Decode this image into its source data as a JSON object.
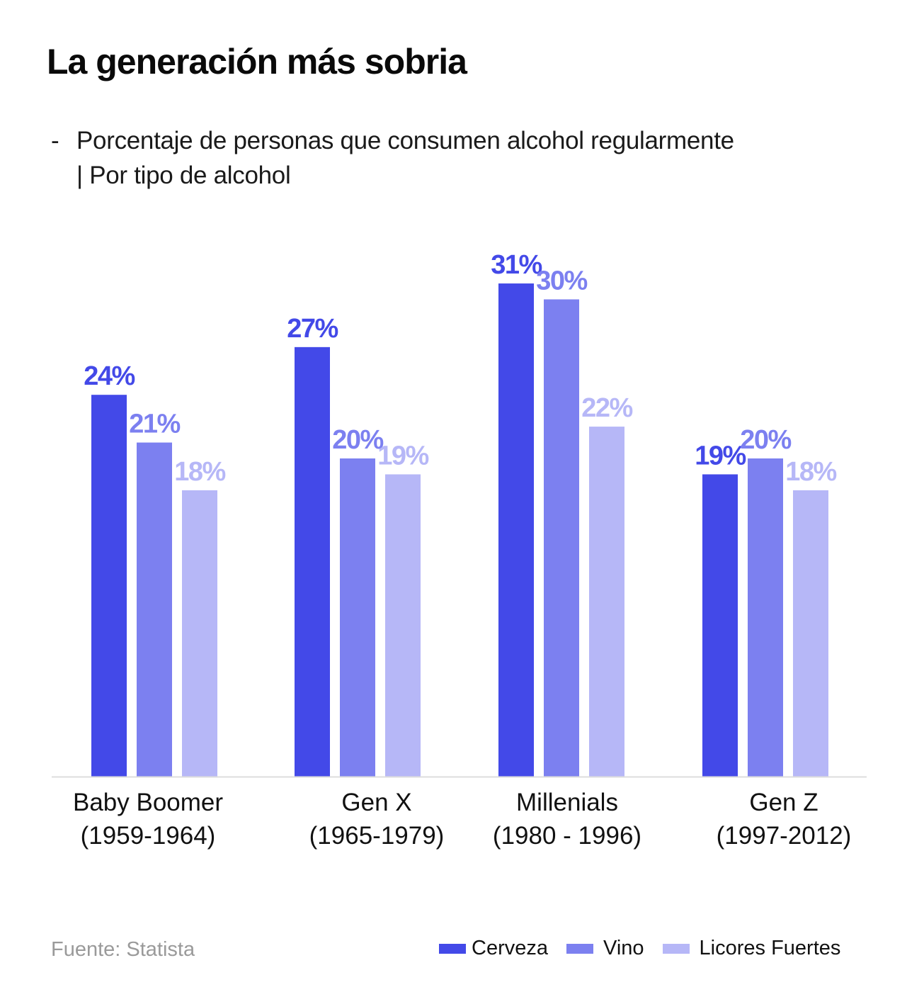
{
  "header": {
    "title": "La generación más sobria",
    "subtitle_dash": "-",
    "subtitle_line1": "Porcentaje de personas que consumen alcohol regularmente",
    "subtitle_line2": "| Por tipo de alcohol"
  },
  "footer": {
    "source": "Fuente: Statista"
  },
  "chart_data": {
    "type": "bar",
    "title": "La generación más sobria",
    "subtitle": "Porcentaje de personas que consumen alcohol regularmente | Por tipo de alcohol",
    "xlabel": "",
    "ylabel": "",
    "ylim": [
      0,
      31
    ],
    "grid": false,
    "legend_position": "bottom-right",
    "categories": [
      {
        "name": "Baby Boomer",
        "years": "(1959-1964)"
      },
      {
        "name": "Gen X",
        "years": "(1965-1979)"
      },
      {
        "name": "Millenials",
        "years": "(1980 - 1996)"
      },
      {
        "name": "Gen Z",
        "years": "(1997-2012)"
      }
    ],
    "series": [
      {
        "name": "Cerveza",
        "color": "#4349E8",
        "values": [
          24,
          27,
          31,
          19
        ],
        "labels": [
          "24%",
          "27%",
          "31%",
          "19%"
        ]
      },
      {
        "name": "Vino",
        "color": "#7C80F0",
        "values": [
          21,
          20,
          30,
          20
        ],
        "labels": [
          "21%",
          "20%",
          "30%",
          "20%"
        ]
      },
      {
        "name": "Licores Fuertes",
        "color": "#B6B7F7",
        "values": [
          18,
          19,
          22,
          18
        ],
        "labels": [
          "18%",
          "19%",
          "22%",
          "18%"
        ]
      }
    ]
  }
}
